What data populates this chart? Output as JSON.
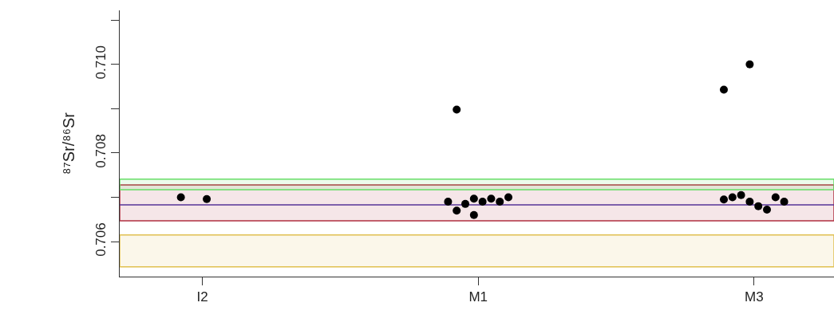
{
  "chart_data": {
    "type": "scatter",
    "ylabel": "⁸⁷Sr/⁸⁶Sr",
    "categories": [
      "I2",
      "M1",
      "M3"
    ],
    "series": [
      {
        "color": "#000000",
        "x": [
          "M1",
          "M3",
          "M3"
        ],
        "values": [
          0.7069,
          0.70943,
          0.70695
        ]
      },
      {
        "color": "#000000",
        "x": [
          "I2",
          "M1",
          "M1",
          "M3"
        ],
        "values": [
          0.707,
          0.70898,
          0.7067,
          0.707
        ]
      },
      {
        "color": "#000000",
        "x": [
          "M1",
          "M3"
        ],
        "values": [
          0.70685,
          0.70705
        ]
      },
      {
        "color": "#000000",
        "x": [
          "M1",
          "M1",
          "M3",
          "M3"
        ],
        "values": [
          0.7066,
          0.70697,
          0.71,
          0.7069
        ]
      },
      {
        "color": "#000000",
        "x": [
          "I2",
          "M1",
          "M3"
        ],
        "values": [
          0.70696,
          0.7069,
          0.7068
        ]
      },
      {
        "color": "#000000",
        "x": [
          "M1",
          "M3"
        ],
        "values": [
          0.70697,
          0.70672
        ]
      },
      {
        "color": "#000000",
        "x": [
          "M1",
          "M3"
        ],
        "values": [
          0.7069,
          0.707
        ]
      },
      {
        "color": "#000000",
        "x": [
          "M1",
          "M3"
        ],
        "values": [
          0.707,
          0.7069
        ]
      }
    ],
    "ylim": [
      0.70521,
      0.71122
    ],
    "yticks": [
      0.706,
      {
        "value": 0.707,
        "label": null
      },
      0.708,
      {
        "value": 0.709,
        "label": null
      },
      {
        "value": 0.71,
        "label": "0.710"
      },
      {
        "value": 0.711,
        "label": null
      }
    ],
    "bands": [
      {
        "axis": "y",
        "from": 0.70543,
        "to": 0.70615,
        "color": "#e0c050"
      },
      {
        "axis": "y",
        "from": 0.70647,
        "to": 0.70728,
        "color": "#b03040"
      },
      {
        "axis": "y",
        "from": 0.70717,
        "to": 0.70741,
        "color": "#66dd66"
      }
    ],
    "ref_lines": [
      {
        "axis": "y",
        "value": 0.70683,
        "color": "#553399"
      }
    ],
    "marker": "circle",
    "grid": false
  }
}
